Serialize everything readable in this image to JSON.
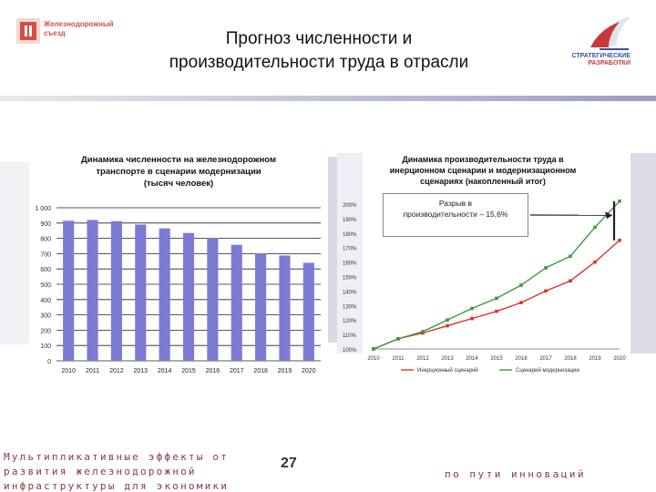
{
  "header": {
    "logo_text_line1": "Железнодорожный",
    "logo_text_line2": "съезд",
    "title_line1": "Прогноз численности и",
    "title_line2": "производительности труда в отрасли",
    "right_logo_line1": "СТРАТЕГИЧЕСКИЕ",
    "right_logo_line2": "РАЗРАБОТКИ"
  },
  "colors": {
    "bar": "#7b7bd4",
    "inertial": "#e03030",
    "modernization": "#3c9a3c",
    "accent": "#8c3a3a"
  },
  "chart_data": [
    {
      "type": "bar",
      "title": "Динамика численности на железнодорожном транспорте в сценарии модернизации (тысяч человек)",
      "title_lines": [
        "Динамика численности на железнодорожном",
        "транспорте в сценарии модернизации",
        "(тысяч человек)"
      ],
      "categories": [
        "2010",
        "2011",
        "2012",
        "2013",
        "2014",
        "2015",
        "2016",
        "2017",
        "2018",
        "2019",
        "2020"
      ],
      "values": [
        915,
        920,
        912,
        890,
        865,
        835,
        800,
        758,
        702,
        688,
        640
      ],
      "ylim": [
        0,
        1000
      ],
      "yticks": [
        "0",
        "100",
        "200",
        "300",
        "400",
        "500",
        "600",
        "700",
        "800",
        "900",
        "1 000"
      ],
      "grid": true
    },
    {
      "type": "line",
      "title": "Динамика производительности труда в инерционном сценарии и модернизационном сценариях (накопленный итог)",
      "title_lines": [
        "Динамика производительности труда в",
        "инерционном сценарии и модернизационном",
        "сценариях (накопленный итог)"
      ],
      "x": [
        "2010",
        "2011",
        "2012",
        "2013",
        "2014",
        "2015",
        "2016",
        "2017",
        "2018",
        "2019",
        "2020"
      ],
      "series": [
        {
          "name": "Инерционный сценарий",
          "values": [
            100,
            107,
            111,
            116,
            121,
            126,
            132,
            140,
            147,
            160,
            175
          ]
        },
        {
          "name": "Сценарий модернизации",
          "values": [
            100,
            107,
            112,
            120,
            128,
            135,
            144,
            156,
            164,
            184,
            202
          ]
        }
      ],
      "ylim": [
        100,
        200
      ],
      "yticks": [
        "100%",
        "110%",
        "120%",
        "130%",
        "140%",
        "150%",
        "160%",
        "170%",
        "180%",
        "190%",
        "200%"
      ],
      "annotation_line1": "Разрыв в",
      "annotation_line2": "производительности – 15,6%",
      "legend_placement": "bottom",
      "grid": false
    }
  ],
  "footer": {
    "left_line1": "Мультипликативные эффекты от",
    "left_line2": "развития железнодорожной",
    "left_line3": "инфраструктуры для экономики",
    "page_number": "27",
    "slogan": "по пути инноваций"
  }
}
